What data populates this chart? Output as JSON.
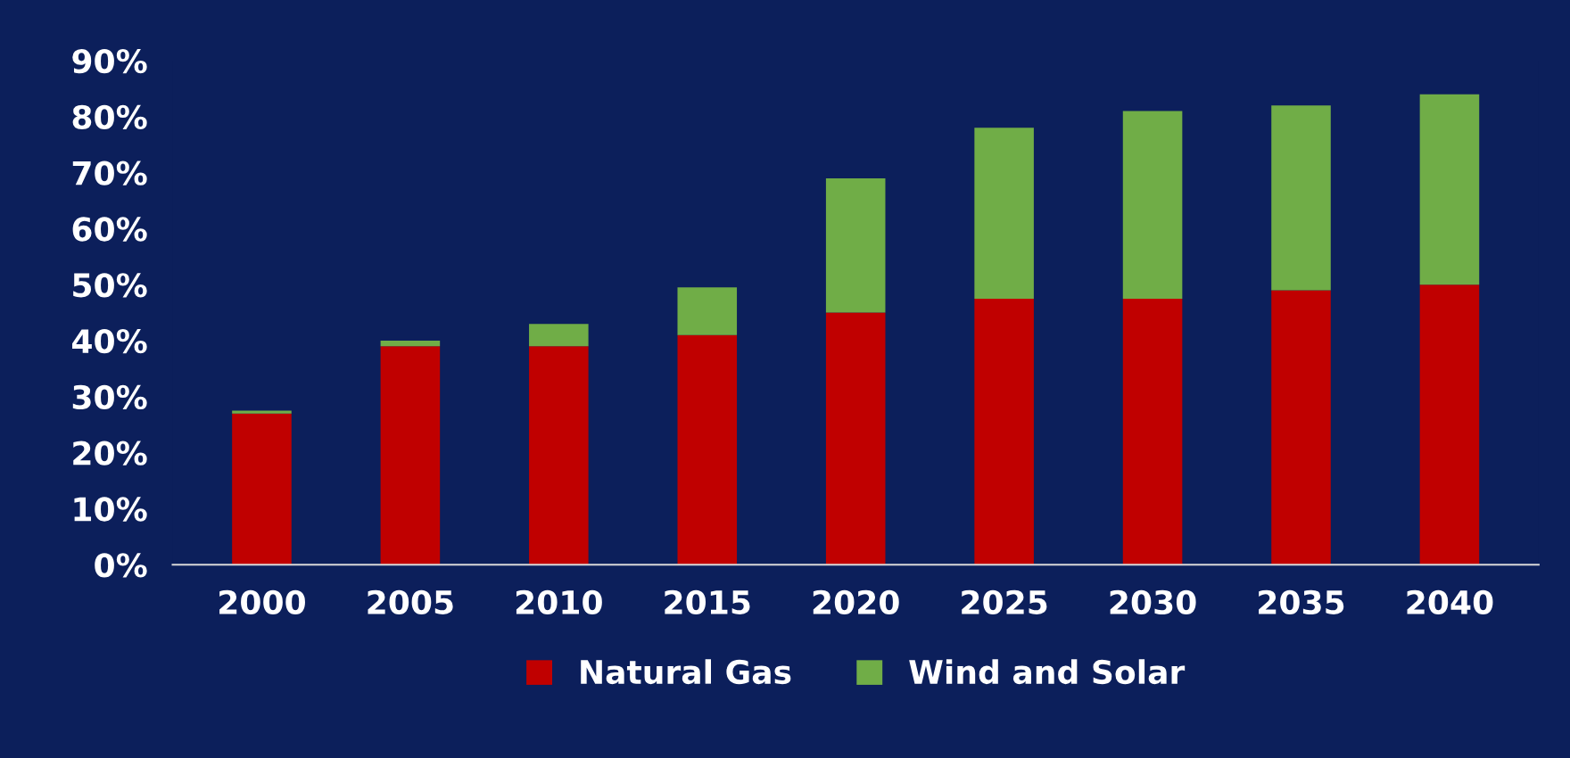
{
  "chart_data": {
    "type": "bar",
    "stacked": true,
    "categories": [
      "2000",
      "2005",
      "2010",
      "2015",
      "2020",
      "2025",
      "2030",
      "2035",
      "2040"
    ],
    "series": [
      {
        "name": "Natural Gas",
        "color": "#c00000",
        "values": [
          27,
          39,
          39,
          41,
          45,
          47.5,
          47.5,
          49,
          50
        ]
      },
      {
        "name": "Wind and Solar",
        "color": "#70ad47",
        "values": [
          0.5,
          1,
          4,
          8.5,
          24,
          30.5,
          33.5,
          33,
          34
        ]
      }
    ],
    "ylim": [
      0,
      90
    ],
    "yticks": [
      {
        "value": 0,
        "label": "0%"
      },
      {
        "value": 10,
        "label": "10%"
      },
      {
        "value": 20,
        "label": "20%"
      },
      {
        "value": 30,
        "label": "30%"
      },
      {
        "value": 40,
        "label": "40%"
      },
      {
        "value": 50,
        "label": "50%"
      },
      {
        "value": 60,
        "label": "60%"
      },
      {
        "value": 70,
        "label": "70%"
      },
      {
        "value": 80,
        "label": "80%"
      },
      {
        "value": 90,
        "label": "90%"
      }
    ],
    "grid": false,
    "legend": "bottom"
  }
}
